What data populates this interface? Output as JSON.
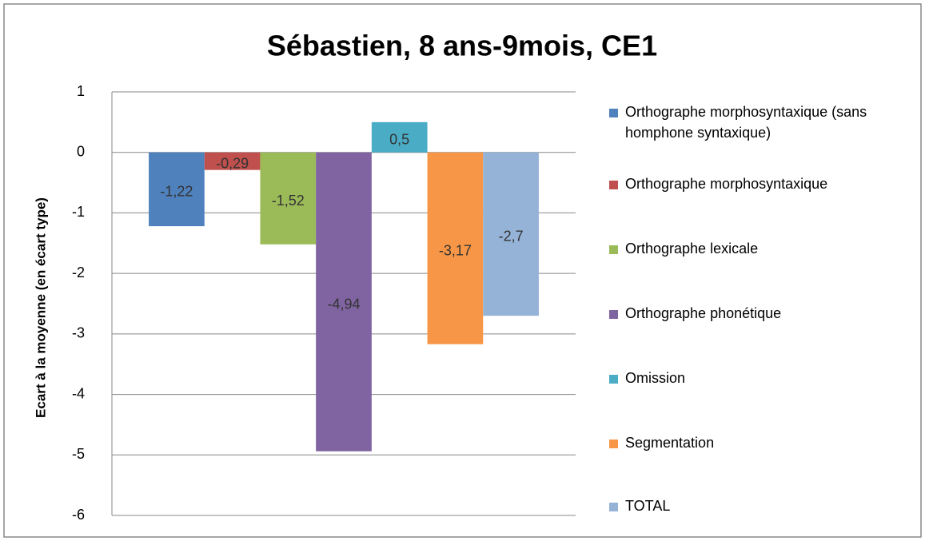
{
  "chart_data": {
    "type": "bar",
    "title": "Sébastien,  8 ans-9mois, CE1",
    "y_label": "Ecart à la moyenne (en écart type)",
    "series": [
      {
        "name": "Orthographe morphosyntaxique (sans homphone syntaxique)",
        "color": "#4f81bd",
        "values": [
          -1.22
        ],
        "value_labels": [
          "-1,22"
        ]
      },
      {
        "name": "Orthographe morphosyntaxique",
        "color": "#c0504d",
        "values": [
          -0.29
        ],
        "value_labels": [
          "-0,29"
        ]
      },
      {
        "name": "Orthographe lexicale",
        "color": "#9bbb59",
        "values": [
          -1.52
        ],
        "value_labels": [
          "-1,52"
        ]
      },
      {
        "name": "Orthographe phonétique",
        "color": "#8064a2",
        "values": [
          -4.94
        ],
        "value_labels": [
          "-4,94"
        ]
      },
      {
        "name": "Omission",
        "color": "#4bacc6",
        "values": [
          0.5
        ],
        "value_labels": [
          "0,5"
        ]
      },
      {
        "name": "Segmentation",
        "color": "#f79646",
        "values": [
          -3.17
        ],
        "value_labels": [
          "-3,17"
        ]
      },
      {
        "name": "TOTAL",
        "color": "#95b3d7",
        "values": [
          -2.7
        ],
        "value_labels": [
          "-2,7"
        ]
      }
    ],
    "ylim": [
      -6,
      1
    ],
    "yticks": [
      -6,
      -5,
      -4,
      -3,
      -2,
      -1,
      0,
      1
    ],
    "grid": true,
    "legend": "right"
  }
}
